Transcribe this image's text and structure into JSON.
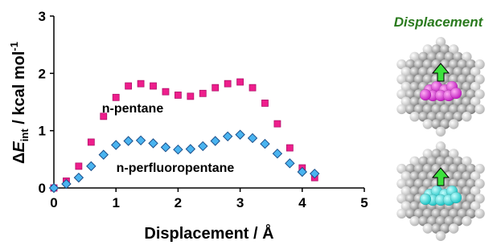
{
  "chart_data": {
    "type": "scatter",
    "xlabel": "Displacement / Å",
    "ylabel": {
      "delta": "Δ",
      "symbol": "E",
      "sub": "int",
      "unit": " / kcal mol",
      "sup": "-1"
    },
    "xlim": [
      0,
      5
    ],
    "xticks": [
      0,
      1,
      2,
      3,
      4,
      5
    ],
    "ylim": [
      0,
      3
    ],
    "yticks": [
      0,
      1,
      2,
      3
    ],
    "x": [
      0,
      0.2,
      0.4,
      0.6,
      0.8,
      1.0,
      1.2,
      1.4,
      1.6,
      1.8,
      2.0,
      2.2,
      2.4,
      2.6,
      2.8,
      3.0,
      3.2,
      3.4,
      3.6,
      3.8,
      4.0,
      4.2
    ],
    "series": [
      {
        "name": "n-pentane",
        "color": "#ee1e8c",
        "edgecolor": "#b0106a",
        "marker": "square",
        "values": [
          0.0,
          0.12,
          0.38,
          0.8,
          1.25,
          1.58,
          1.78,
          1.82,
          1.78,
          1.68,
          1.62,
          1.6,
          1.65,
          1.75,
          1.82,
          1.85,
          1.75,
          1.48,
          1.12,
          0.7,
          0.35,
          0.18
        ]
      },
      {
        "name": "n-perfluoropentane",
        "color": "#4ab4f0",
        "edgecolor": "#1b4f8a",
        "marker": "diamond",
        "values": [
          0.0,
          0.07,
          0.18,
          0.38,
          0.58,
          0.75,
          0.82,
          0.83,
          0.78,
          0.71,
          0.67,
          0.68,
          0.73,
          0.82,
          0.9,
          0.93,
          0.87,
          0.77,
          0.6,
          0.43,
          0.28,
          0.25
        ]
      }
    ]
  },
  "panel_title": "Displacement"
}
